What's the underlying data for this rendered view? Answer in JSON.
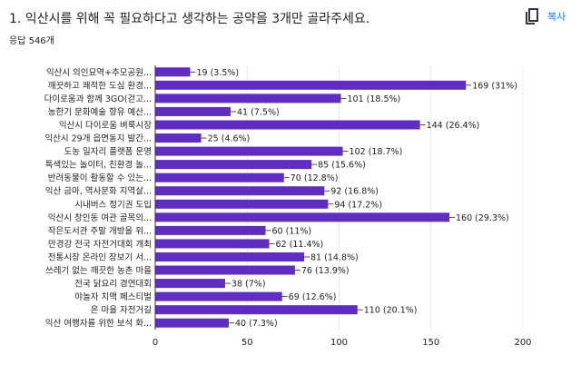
{
  "question": {
    "title": "1. 익산시를 위해 꼭 필요하다고 생각하는 공약을 3개만 골라주세요.",
    "response_count": "응답 546개",
    "copy_label": "복사",
    "copy_icon": "copy-icon"
  },
  "colors": {
    "bar": "#5f2dbf",
    "grid": "#e8e8e8",
    "axis": "#333333",
    "text": "#222222"
  },
  "chart_data": {
    "type": "bar",
    "orientation": "horizontal",
    "categories": [
      "익산시 의인묘역+추모공원...",
      "깨끗하고 쾌적한 도심 환경...",
      "다이로움과 함께 3GO(걷고...",
      "농한기 문화예술 향유 예산...",
      "익산시 다이로움 벼룩시장",
      "익산시 29개 읍면동지 발간...",
      "도농 일자리 플랫폼 운영",
      "특색있는 놀이터, 친환경 놀...",
      "반려동물이 활동할 수 있는...",
      "익산 금마, 역사문화 지역살...",
      "시내버스 정기권 도입",
      "익산시 창인동 여관 골목의...",
      "작은도서관 주말 개방을 위...",
      "만경강 전국 자전거대회 개최",
      "전통시장 온라인 장보기 서...",
      "쓰레기 없는 깨끗한 농촌 마을",
      "전국 닭요리 경연대회",
      "야놀자 치맥 페스티벌",
      "온 마을 자전거길",
      "익산 여행자를 위한 보석 화..."
    ],
    "values": [
      19,
      169,
      101,
      41,
      144,
      25,
      102,
      85,
      70,
      92,
      94,
      160,
      60,
      62,
      81,
      76,
      38,
      69,
      110,
      40
    ],
    "data_labels": [
      "19 (3.5%)",
      "169 (31%)",
      "101 (18.5%)",
      "41 (7.5%)",
      "144 (26.4%)",
      "25 (4.6%)",
      "102 (18.7%)",
      "85 (15.6%)",
      "70 (12.8%)",
      "92 (16.8%)",
      "94 (17.2%)",
      "160 (29.3%)",
      "60 (11%)",
      "62 (11.4%)",
      "81 (14.8%)",
      "76 (13.9%)",
      "38 (7%)",
      "69 (12.6%)",
      "110 (20.1%)",
      "40 (7.3%)"
    ],
    "xlim": [
      0,
      200
    ],
    "x_ticks": [
      "0",
      "50",
      "100",
      "150",
      "200"
    ],
    "grid": true,
    "legend": "none"
  }
}
